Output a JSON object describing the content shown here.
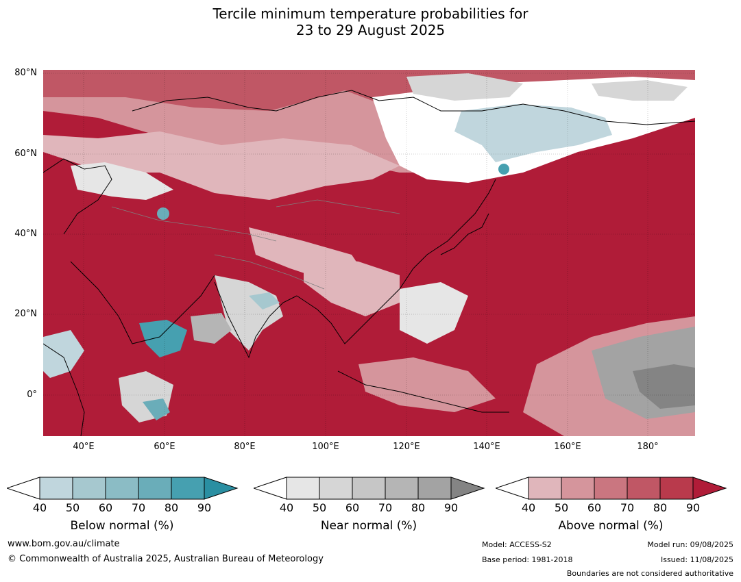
{
  "title": {
    "line1": "Tercile minimum temperature probabilities for",
    "line2": "23 to 29 August 2025"
  },
  "map": {
    "lat_labels": [
      "80°N",
      "60°N",
      "40°N",
      "20°N",
      "0°"
    ],
    "lon_labels": [
      "40°E",
      "60°E",
      "80°E",
      "100°E",
      "120°E",
      "140°E",
      "160°E",
      "180°"
    ],
    "region": "Asia"
  },
  "colorbars": [
    {
      "name": "Below normal (%)",
      "ticks": [
        "40",
        "50",
        "60",
        "70",
        "80",
        "90"
      ],
      "colors": [
        "#c0d6dd",
        "#a6c8cf",
        "#8bbcc5",
        "#6aadb9",
        "#46a0b0",
        "#2a8fa2"
      ]
    },
    {
      "name": "Near normal (%)",
      "ticks": [
        "40",
        "50",
        "60",
        "70",
        "80",
        "90"
      ],
      "colors": [
        "#e6e6e6",
        "#d6d6d6",
        "#c6c6c6",
        "#b5b5b5",
        "#a3a3a3",
        "#848484"
      ]
    },
    {
      "name": "Above normal (%)",
      "ticks": [
        "40",
        "50",
        "60",
        "70",
        "80",
        "90"
      ],
      "colors": [
        "#e0b6bb",
        "#d5959c",
        "#ca7680",
        "#c05765",
        "#b93a4c",
        "#b01c38"
      ]
    }
  ],
  "footer": {
    "website": "www.bom.gov.au/climate",
    "copyright": "© Commonwealth of Australia 2025, Australian Bureau of Meteorology",
    "model": "Model: ACCESS-S2",
    "base_period": "Base period: 1981-2018",
    "model_run": "Model run: 09/08/2025",
    "issued": "Issued: 11/08/2025",
    "disclaimer": "Boundaries are not considered authoritative"
  }
}
